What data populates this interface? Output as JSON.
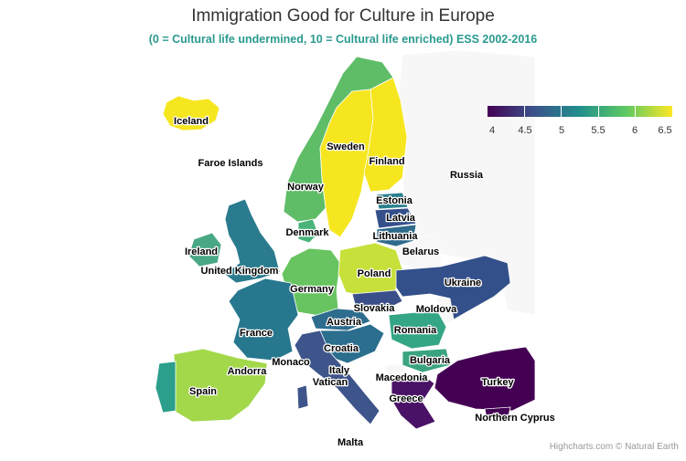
{
  "title": "Immigration Good for Culture in Europe",
  "subtitle": "(0 = Cultural life undermined, 10 = Cultural life enriched) ESS 2002-2016",
  "credits": "Highcharts.com © Natural Earth",
  "legend": {
    "labels": [
      "4",
      "4.5",
      "5",
      "5.5",
      "6",
      "6.5"
    ],
    "colors": [
      "#440154",
      "#3b528b",
      "#21908c",
      "#5ec962",
      "#fde725"
    ]
  },
  "colors": {
    "no_data": "#f7f7f7",
    "turkey": "#440154",
    "yellow": "#f6e620",
    "dark_blue": "#33508a",
    "teal": "#26808e",
    "green": "#67c460",
    "light_green": "#a2d84a",
    "yellow_green": "#c8e03a"
  },
  "countries": [
    {
      "id": "iceland",
      "label": "Iceland",
      "color": "#f6e620"
    },
    {
      "id": "faroe",
      "label": "Faroe Islands",
      "color": "#f7f7f7"
    },
    {
      "id": "norway",
      "label": "Norway",
      "color": "#5fbd68"
    },
    {
      "id": "sweden",
      "label": "Sweden",
      "color": "#f6e620"
    },
    {
      "id": "finland",
      "label": "Finland",
      "color": "#f6e620"
    },
    {
      "id": "russia",
      "label": "Russia",
      "color": "#f7f7f7"
    },
    {
      "id": "estonia",
      "label": "Estonia",
      "color": "#2a7f8e"
    },
    {
      "id": "latvia",
      "label": "Latvia",
      "color": "#34508b"
    },
    {
      "id": "lithuania",
      "label": "Lithuania",
      "color": "#2f6a8c"
    },
    {
      "id": "belarus",
      "label": "Belarus",
      "color": "#f7f7f7"
    },
    {
      "id": "denmark",
      "label": "Denmark",
      "color": "#4ab47a"
    },
    {
      "id": "ireland",
      "label": "Ireland",
      "color": "#49a884"
    },
    {
      "id": "uk",
      "label": "United Kingdom",
      "color": "#2b7b8e"
    },
    {
      "id": "poland",
      "label": "Poland",
      "color": "#c8e03a"
    },
    {
      "id": "ukraine",
      "label": "Ukraine",
      "color": "#33508a"
    },
    {
      "id": "germany",
      "label": "Germany",
      "color": "#67c460"
    },
    {
      "id": "slovakia",
      "label": "Slovakia",
      "color": "#3a4f8a"
    },
    {
      "id": "moldova",
      "label": "Moldova",
      "color": "#f7f7f7"
    },
    {
      "id": "france",
      "label": "France",
      "color": "#27788e"
    },
    {
      "id": "austria",
      "label": "Austria",
      "color": "#2e6d8e"
    },
    {
      "id": "romania",
      "label": "Romania",
      "color": "#34a585"
    },
    {
      "id": "croatia",
      "label": "Croatia",
      "color": "#2b6e8e"
    },
    {
      "id": "bulgaria",
      "label": "Bulgaria",
      "color": "#3aa47f"
    },
    {
      "id": "andorra",
      "label": "Andorra",
      "color": "#f7f7f7"
    },
    {
      "id": "monaco",
      "label": "Monaco",
      "color": "#f7f7f7"
    },
    {
      "id": "italy",
      "label": "Italy",
      "color": "#3e558b"
    },
    {
      "id": "vatican",
      "label": "Vatican",
      "color": "#f7f7f7"
    },
    {
      "id": "macedonia",
      "label": "Macedonia",
      "color": "#f7f7f7"
    },
    {
      "id": "spain",
      "label": "Spain",
      "color": "#a2d84a"
    },
    {
      "id": "greece",
      "label": "Greece",
      "color": "#4a1266"
    },
    {
      "id": "turkey",
      "label": "Turkey",
      "color": "#440154"
    },
    {
      "id": "cyprus",
      "label": "Northern Cyprus",
      "color": "#440154"
    },
    {
      "id": "malta",
      "label": "Malta",
      "color": "#f7f7f7"
    }
  ]
}
